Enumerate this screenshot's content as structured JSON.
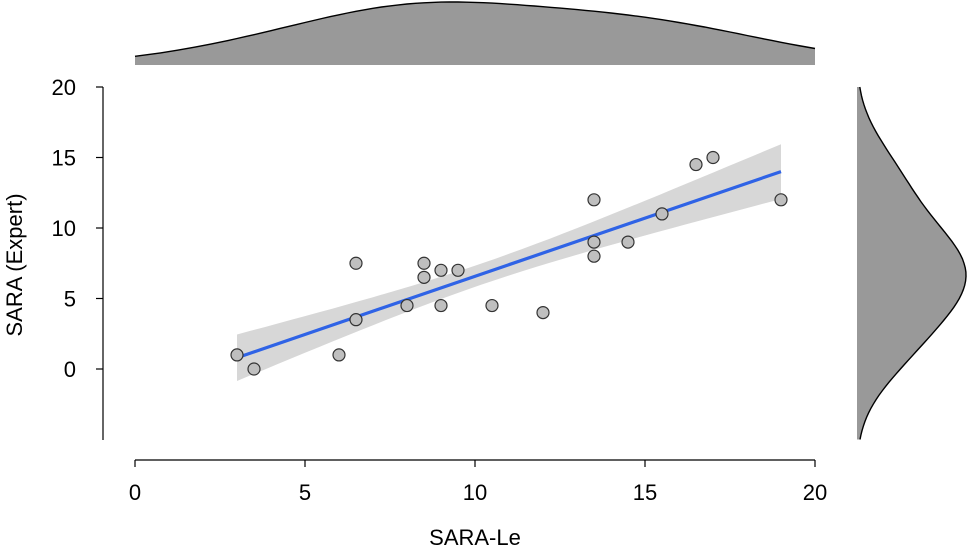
{
  "chart_data": {
    "type": "scatter",
    "title": "",
    "xlabel": "SARA-Le",
    "ylabel": "SARA (Expert)",
    "xlim": [
      0,
      20
    ],
    "ylim": [
      -5,
      20
    ],
    "x_ticks": [
      0,
      5,
      10,
      15,
      20
    ],
    "y_ticks": [
      0,
      5,
      10,
      15,
      20
    ],
    "grid": false,
    "points": [
      {
        "x": 3,
        "y": 1
      },
      {
        "x": 3.5,
        "y": 0
      },
      {
        "x": 6,
        "y": 1
      },
      {
        "x": 6.5,
        "y": 7.5
      },
      {
        "x": 6.5,
        "y": 3.5
      },
      {
        "x": 8,
        "y": 4.5
      },
      {
        "x": 8.5,
        "y": 7.5
      },
      {
        "x": 8.5,
        "y": 6.5
      },
      {
        "x": 9,
        "y": 7
      },
      {
        "x": 9,
        "y": 4.5
      },
      {
        "x": 9.5,
        "y": 7
      },
      {
        "x": 10.5,
        "y": 4.5
      },
      {
        "x": 12,
        "y": 4
      },
      {
        "x": 13.5,
        "y": 12
      },
      {
        "x": 13.5,
        "y": 9
      },
      {
        "x": 13.5,
        "y": 8
      },
      {
        "x": 14.5,
        "y": 9
      },
      {
        "x": 15.5,
        "y": 11
      },
      {
        "x": 16.5,
        "y": 14.5
      },
      {
        "x": 17,
        "y": 15
      },
      {
        "x": 19,
        "y": 12
      }
    ],
    "regression": {
      "x": [
        3,
        19
      ],
      "y": [
        0.8,
        14.0
      ],
      "ci_lower": [
        -0.8,
        12.2
      ],
      "ci_upper": [
        2.5,
        15.8
      ],
      "color": "#2f63e6"
    },
    "marginals": {
      "x_density": "top",
      "y_density": "right",
      "fill": "#999999"
    },
    "colors": {
      "point_fill": "#bfbfbf",
      "point_stroke": "#333333",
      "ci_band": "#d7d7d7"
    }
  }
}
